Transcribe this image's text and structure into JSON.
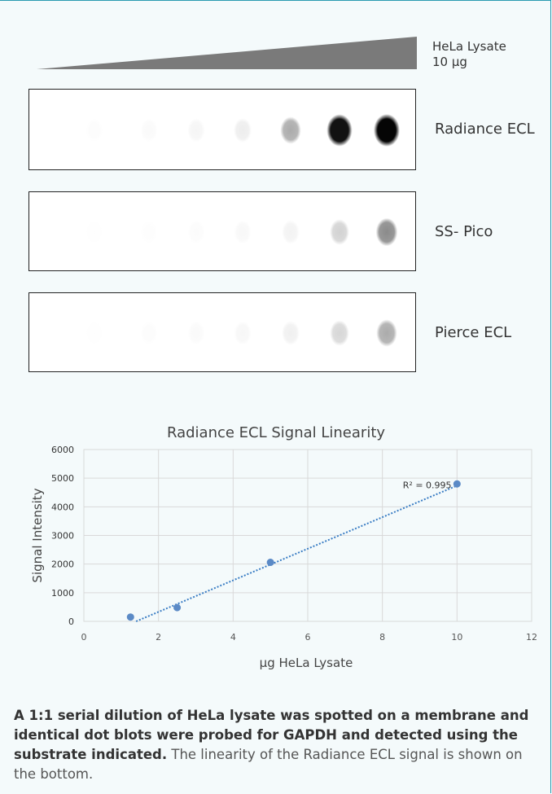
{
  "wedge": {
    "label_line1": "HeLa Lysate",
    "label_line2": "10 µg",
    "color": "#7a7a7a"
  },
  "blots": [
    {
      "label": "Radiance ECL",
      "spot_intensity": [
        0.04,
        0.06,
        0.1,
        0.16,
        0.45,
        0.95,
        1.0
      ]
    },
    {
      "label": "SS- Pico",
      "spot_intensity": [
        0.02,
        0.03,
        0.05,
        0.08,
        0.12,
        0.3,
        0.55
      ]
    },
    {
      "label": "Pierce ECL",
      "spot_intensity": [
        0.02,
        0.04,
        0.06,
        0.09,
        0.14,
        0.28,
        0.45
      ]
    }
  ],
  "chart_data": {
    "type": "scatter",
    "title": "Radiance ECL Signal Linearity",
    "xlabel": "µg HeLa Lysate",
    "ylabel": "Signal Intensity",
    "xlim": [
      0,
      12
    ],
    "ylim": [
      0,
      6000
    ],
    "x_ticks": [
      0,
      2,
      4,
      6,
      8,
      10,
      12
    ],
    "y_ticks": [
      0,
      1000,
      2000,
      3000,
      4000,
      5000,
      6000
    ],
    "series": [
      {
        "x": [
          1.25,
          2.5,
          5,
          10
        ],
        "y": [
          150,
          480,
          2060,
          4800
        ]
      }
    ],
    "trendline": {
      "type": "linear",
      "from": [
        1.4,
        0
      ],
      "to": [
        10,
        4740
      ],
      "r2_label": "R² = 0.995"
    },
    "grid": true,
    "colors": {
      "point": "#5b8ac6",
      "trend": "#3a7dc4"
    }
  },
  "caption": {
    "bold": "A 1:1 serial dilution of HeLa lysate was spotted on a membrane and identical dot blots were probed for GAPDH and detected using the substrate indicated.",
    "normal": " The linearity of the Radiance ECL signal is shown on the bottom."
  }
}
